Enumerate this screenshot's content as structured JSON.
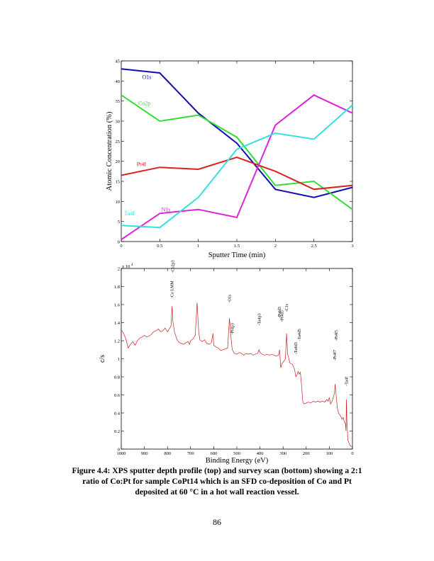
{
  "page": {
    "number": "86"
  },
  "caption": {
    "lines": [
      "Figure 4.4: XPS sputter depth profile (top) and survey scan (bottom) showing a 2:1",
      "ratio of Co:Pt for sample CoPt14 which is an SFD co-deposition of Co and Pt",
      "deposited at 60 °C in a hot wall reaction vessel."
    ]
  },
  "chart_data": [
    {
      "type": "line",
      "xlabel": "Sputter Time (min)",
      "ylabel": "Atomic Concentration (%)",
      "xlim": [
        0,
        3
      ],
      "ylim": [
        0,
        45
      ],
      "xticks": [
        0,
        0.5,
        1,
        1.5,
        2,
        2.5,
        3
      ],
      "xtick_labels": [
        "0",
        "0.5",
        "1",
        "1.5",
        "2",
        "2.5",
        "3"
      ],
      "yticks": [
        0,
        5,
        10,
        15,
        20,
        25,
        30,
        35,
        40,
        45
      ],
      "ytick_labels": [
        "0",
        "5",
        "10",
        "15",
        "20",
        "25",
        "30",
        "35",
        "40",
        "45"
      ],
      "grid": false,
      "x": [
        0,
        0.5,
        1,
        1.5,
        2,
        2.5,
        3
      ],
      "series": [
        {
          "name": "O1s",
          "color": "#1010b0",
          "values": [
            43.0,
            42.0,
            32.0,
            24.5,
            13.0,
            11.0,
            13.5
          ],
          "label_at": [
            0.27,
            40.5
          ]
        },
        {
          "name": "Co2p",
          "color": "#33dd33",
          "values": [
            36.5,
            30.0,
            31.5,
            26.0,
            14.0,
            15.0,
            8.0
          ],
          "label_at": [
            0.22,
            34.0
          ]
        },
        {
          "name": "Pt4f",
          "color": "#dd2020",
          "values": [
            16.5,
            18.5,
            18.0,
            21.0,
            17.5,
            13.0,
            14.0
          ],
          "label_at": [
            0.2,
            18.8
          ]
        },
        {
          "name": "N1s",
          "color": "#dd22dd",
          "values": [
            0.5,
            7.0,
            8.0,
            6.0,
            29.0,
            36.5,
            32.0
          ],
          "label_at": [
            0.52,
            7.5
          ]
        },
        {
          "name": "Ta4f",
          "color": "#33e0e0",
          "values": [
            4.0,
            3.5,
            11.0,
            23.0,
            27.0,
            25.5,
            34.0
          ],
          "label_at": [
            0.04,
            6.5
          ]
        }
      ]
    },
    {
      "type": "line",
      "xlabel": "Binding Energy (eV)",
      "ylabel": "c/s",
      "x_reversed": true,
      "xlim": [
        1000,
        0
      ],
      "ylim": [
        0,
        2
      ],
      "y_multiplier": "x 10",
      "y_multiplier_exp": "4",
      "xticks": [
        1000,
        900,
        800,
        700,
        600,
        500,
        400,
        300,
        200,
        100,
        0
      ],
      "xtick_labels": [
        "1000",
        "900",
        "800",
        "700",
        "600",
        "500",
        "400",
        "300",
        "200",
        "100",
        "0"
      ],
      "yticks": [
        0,
        0.2,
        0.4,
        0.6,
        0.8,
        1,
        1.2,
        1.4,
        1.6,
        1.8,
        2
      ],
      "ytick_labels": [
        "0",
        "0.2",
        "0.4",
        "0.6",
        "0.8",
        "1",
        "1.2",
        "1.4",
        "1.6",
        "1.8",
        "2"
      ],
      "grid": false,
      "series_color": "#cc2020",
      "points": [
        [
          1000,
          1.32
        ],
        [
          990,
          1.28
        ],
        [
          980,
          1.22
        ],
        [
          970,
          1.12
        ],
        [
          960,
          1.16
        ],
        [
          950,
          1.19
        ],
        [
          940,
          1.15
        ],
        [
          930,
          1.2
        ],
        [
          920,
          1.23
        ],
        [
          910,
          1.24
        ],
        [
          900,
          1.26
        ],
        [
          890,
          1.24
        ],
        [
          880,
          1.25
        ],
        [
          870,
          1.27
        ],
        [
          860,
          1.3
        ],
        [
          850,
          1.31
        ],
        [
          840,
          1.33
        ],
        [
          830,
          1.3
        ],
        [
          820,
          1.31
        ],
        [
          810,
          1.34
        ],
        [
          800,
          1.3
        ],
        [
          795,
          1.32
        ],
        [
          785,
          1.36
        ],
        [
          780,
          1.58
        ],
        [
          777,
          1.42
        ],
        [
          770,
          1.3
        ],
        [
          760,
          1.22
        ],
        [
          750,
          1.18
        ],
        [
          740,
          1.17
        ],
        [
          730,
          1.16
        ],
        [
          720,
          1.18
        ],
        [
          710,
          1.19
        ],
        [
          705,
          1.16
        ],
        [
          700,
          1.2
        ],
        [
          690,
          1.22
        ],
        [
          680,
          1.26
        ],
        [
          672,
          1.62
        ],
        [
          665,
          1.3
        ],
        [
          660,
          1.21
        ],
        [
          650,
          1.19
        ],
        [
          640,
          1.21
        ],
        [
          630,
          1.17
        ],
        [
          620,
          1.16
        ],
        [
          610,
          1.18
        ],
        [
          603,
          1.28
        ],
        [
          600,
          1.15
        ],
        [
          590,
          1.13
        ],
        [
          580,
          1.12
        ],
        [
          570,
          1.09
        ],
        [
          560,
          1.1
        ],
        [
          550,
          1.11
        ],
        [
          540,
          1.12
        ],
        [
          532,
          1.45
        ],
        [
          526,
          1.25
        ],
        [
          520,
          1.1
        ],
        [
          510,
          1.06
        ],
        [
          500,
          1.05
        ],
        [
          490,
          1.07
        ],
        [
          480,
          1.06
        ],
        [
          470,
          1.04
        ],
        [
          460,
          1.06
        ],
        [
          450,
          1.05
        ],
        [
          440,
          1.06
        ],
        [
          430,
          1.04
        ],
        [
          420,
          1.05
        ],
        [
          410,
          1.06
        ],
        [
          404,
          1.1
        ],
        [
          400,
          1.07
        ],
        [
          390,
          1.05
        ],
        [
          380,
          1.04
        ],
        [
          370,
          1.05
        ],
        [
          360,
          1.04
        ],
        [
          350,
          1.05
        ],
        [
          340,
          1.04
        ],
        [
          330,
          1.03
        ],
        [
          320,
          1.04
        ],
        [
          315,
          1.1
        ],
        [
          310,
          0.9
        ],
        [
          305,
          0.95
        ],
        [
          300,
          0.96
        ],
        [
          290,
          1.0
        ],
        [
          285,
          1.28
        ],
        [
          280,
          1.05
        ],
        [
          270,
          0.95
        ],
        [
          260,
          0.94
        ],
        [
          250,
          0.88
        ],
        [
          245,
          0.8
        ],
        [
          240,
          0.82
        ],
        [
          235,
          0.86
        ],
        [
          230,
          0.83
        ],
        [
          225,
          0.85
        ],
        [
          220,
          0.7
        ],
        [
          215,
          0.53
        ],
        [
          210,
          0.5
        ],
        [
          200,
          0.51
        ],
        [
          190,
          0.52
        ],
        [
          180,
          0.51
        ],
        [
          170,
          0.53
        ],
        [
          160,
          0.52
        ],
        [
          150,
          0.53
        ],
        [
          140,
          0.52
        ],
        [
          130,
          0.53
        ],
        [
          120,
          0.52
        ],
        [
          110,
          0.55
        ],
        [
          105,
          0.53
        ],
        [
          100,
          0.57
        ],
        [
          95,
          0.5
        ],
        [
          90,
          0.52
        ],
        [
          85,
          0.55
        ],
        [
          78,
          0.62
        ],
        [
          75,
          0.72
        ],
        [
          71,
          0.6
        ],
        [
          65,
          0.45
        ],
        [
          60,
          0.4
        ],
        [
          55,
          0.38
        ],
        [
          50,
          0.36
        ],
        [
          45,
          0.33
        ],
        [
          40,
          0.35
        ],
        [
          35,
          0.3
        ],
        [
          30,
          0.28
        ],
        [
          28,
          0.2
        ],
        [
          26,
          0.55
        ],
        [
          24,
          0.3
        ],
        [
          22,
          0.22
        ],
        [
          20,
          0.1
        ],
        [
          10,
          0.04
        ],
        [
          0,
          0.02
        ]
      ],
      "annotations": [
        {
          "label": "Co LMM",
          "x": 780,
          "y_top": 1.67
        },
        {
          "label": "Co2p3",
          "x": 778,
          "y_top": 1.95
        },
        {
          "label": "O1s",
          "x": 532,
          "y_top": 1.62
        },
        {
          "label": "Pt4p3",
          "x": 520,
          "y_top": 1.27
        },
        {
          "label": "Ta4p3",
          "x": 404,
          "y_top": 1.37
        },
        {
          "label": "Pt4d3",
          "x": 316,
          "y_top": 1.45
        },
        {
          "label": "Pt4d5",
          "x": 305,
          "y_top": 1.41
        },
        {
          "label": "C1s",
          "x": 285,
          "y_top": 1.52
        },
        {
          "label": "Ta4d3",
          "x": 245,
          "y_top": 1.05
        },
        {
          "label": "Ta4d5",
          "x": 230,
          "y_top": 1.2
        },
        {
          "label": "Pt4f7",
          "x": 76,
          "y_top": 0.98
        },
        {
          "label": "Pt4f5",
          "x": 70,
          "y_top": 1.2
        },
        {
          "label": "Ta4f",
          "x": 26,
          "y_top": 0.7
        }
      ]
    }
  ]
}
